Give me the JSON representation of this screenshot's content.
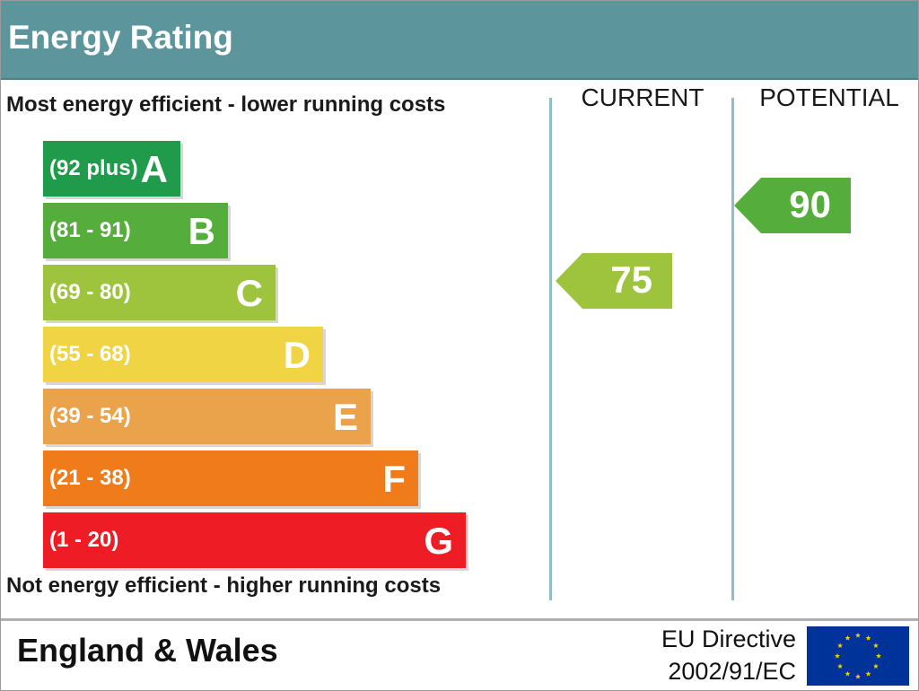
{
  "header": {
    "title": "Energy Rating"
  },
  "notes": {
    "top": "Most energy efficient - lower running costs",
    "bottom": "Not energy efficient - higher running costs"
  },
  "columns": {
    "current": "CURRENT",
    "potential": "POTENTIAL"
  },
  "footer": {
    "region": "England & Wales",
    "directive_line1": "EU Directive",
    "directive_line2": "2002/91/EC"
  },
  "chart_data": {
    "type": "bar",
    "bands": [
      {
        "range": "(92 plus)",
        "letter": "A",
        "color": "#1f9b4b"
      },
      {
        "range": "(81 - 91)",
        "letter": "B",
        "color": "#55ad3c"
      },
      {
        "range": "(69 - 80)",
        "letter": "C",
        "color": "#9ec43e"
      },
      {
        "range": "(55 - 68)",
        "letter": "D",
        "color": "#f0d443"
      },
      {
        "range": "(39 - 54)",
        "letter": "E",
        "color": "#eba34b"
      },
      {
        "range": "(21 - 38)",
        "letter": "F",
        "color": "#ef7b1b"
      },
      {
        "range": "(1 - 20)",
        "letter": "G",
        "color": "#ee1c24"
      }
    ],
    "current": {
      "value": "75",
      "band": "C",
      "color": "#9ec43e"
    },
    "potential": {
      "value": "90",
      "band": "B",
      "color": "#55ad3c"
    }
  }
}
